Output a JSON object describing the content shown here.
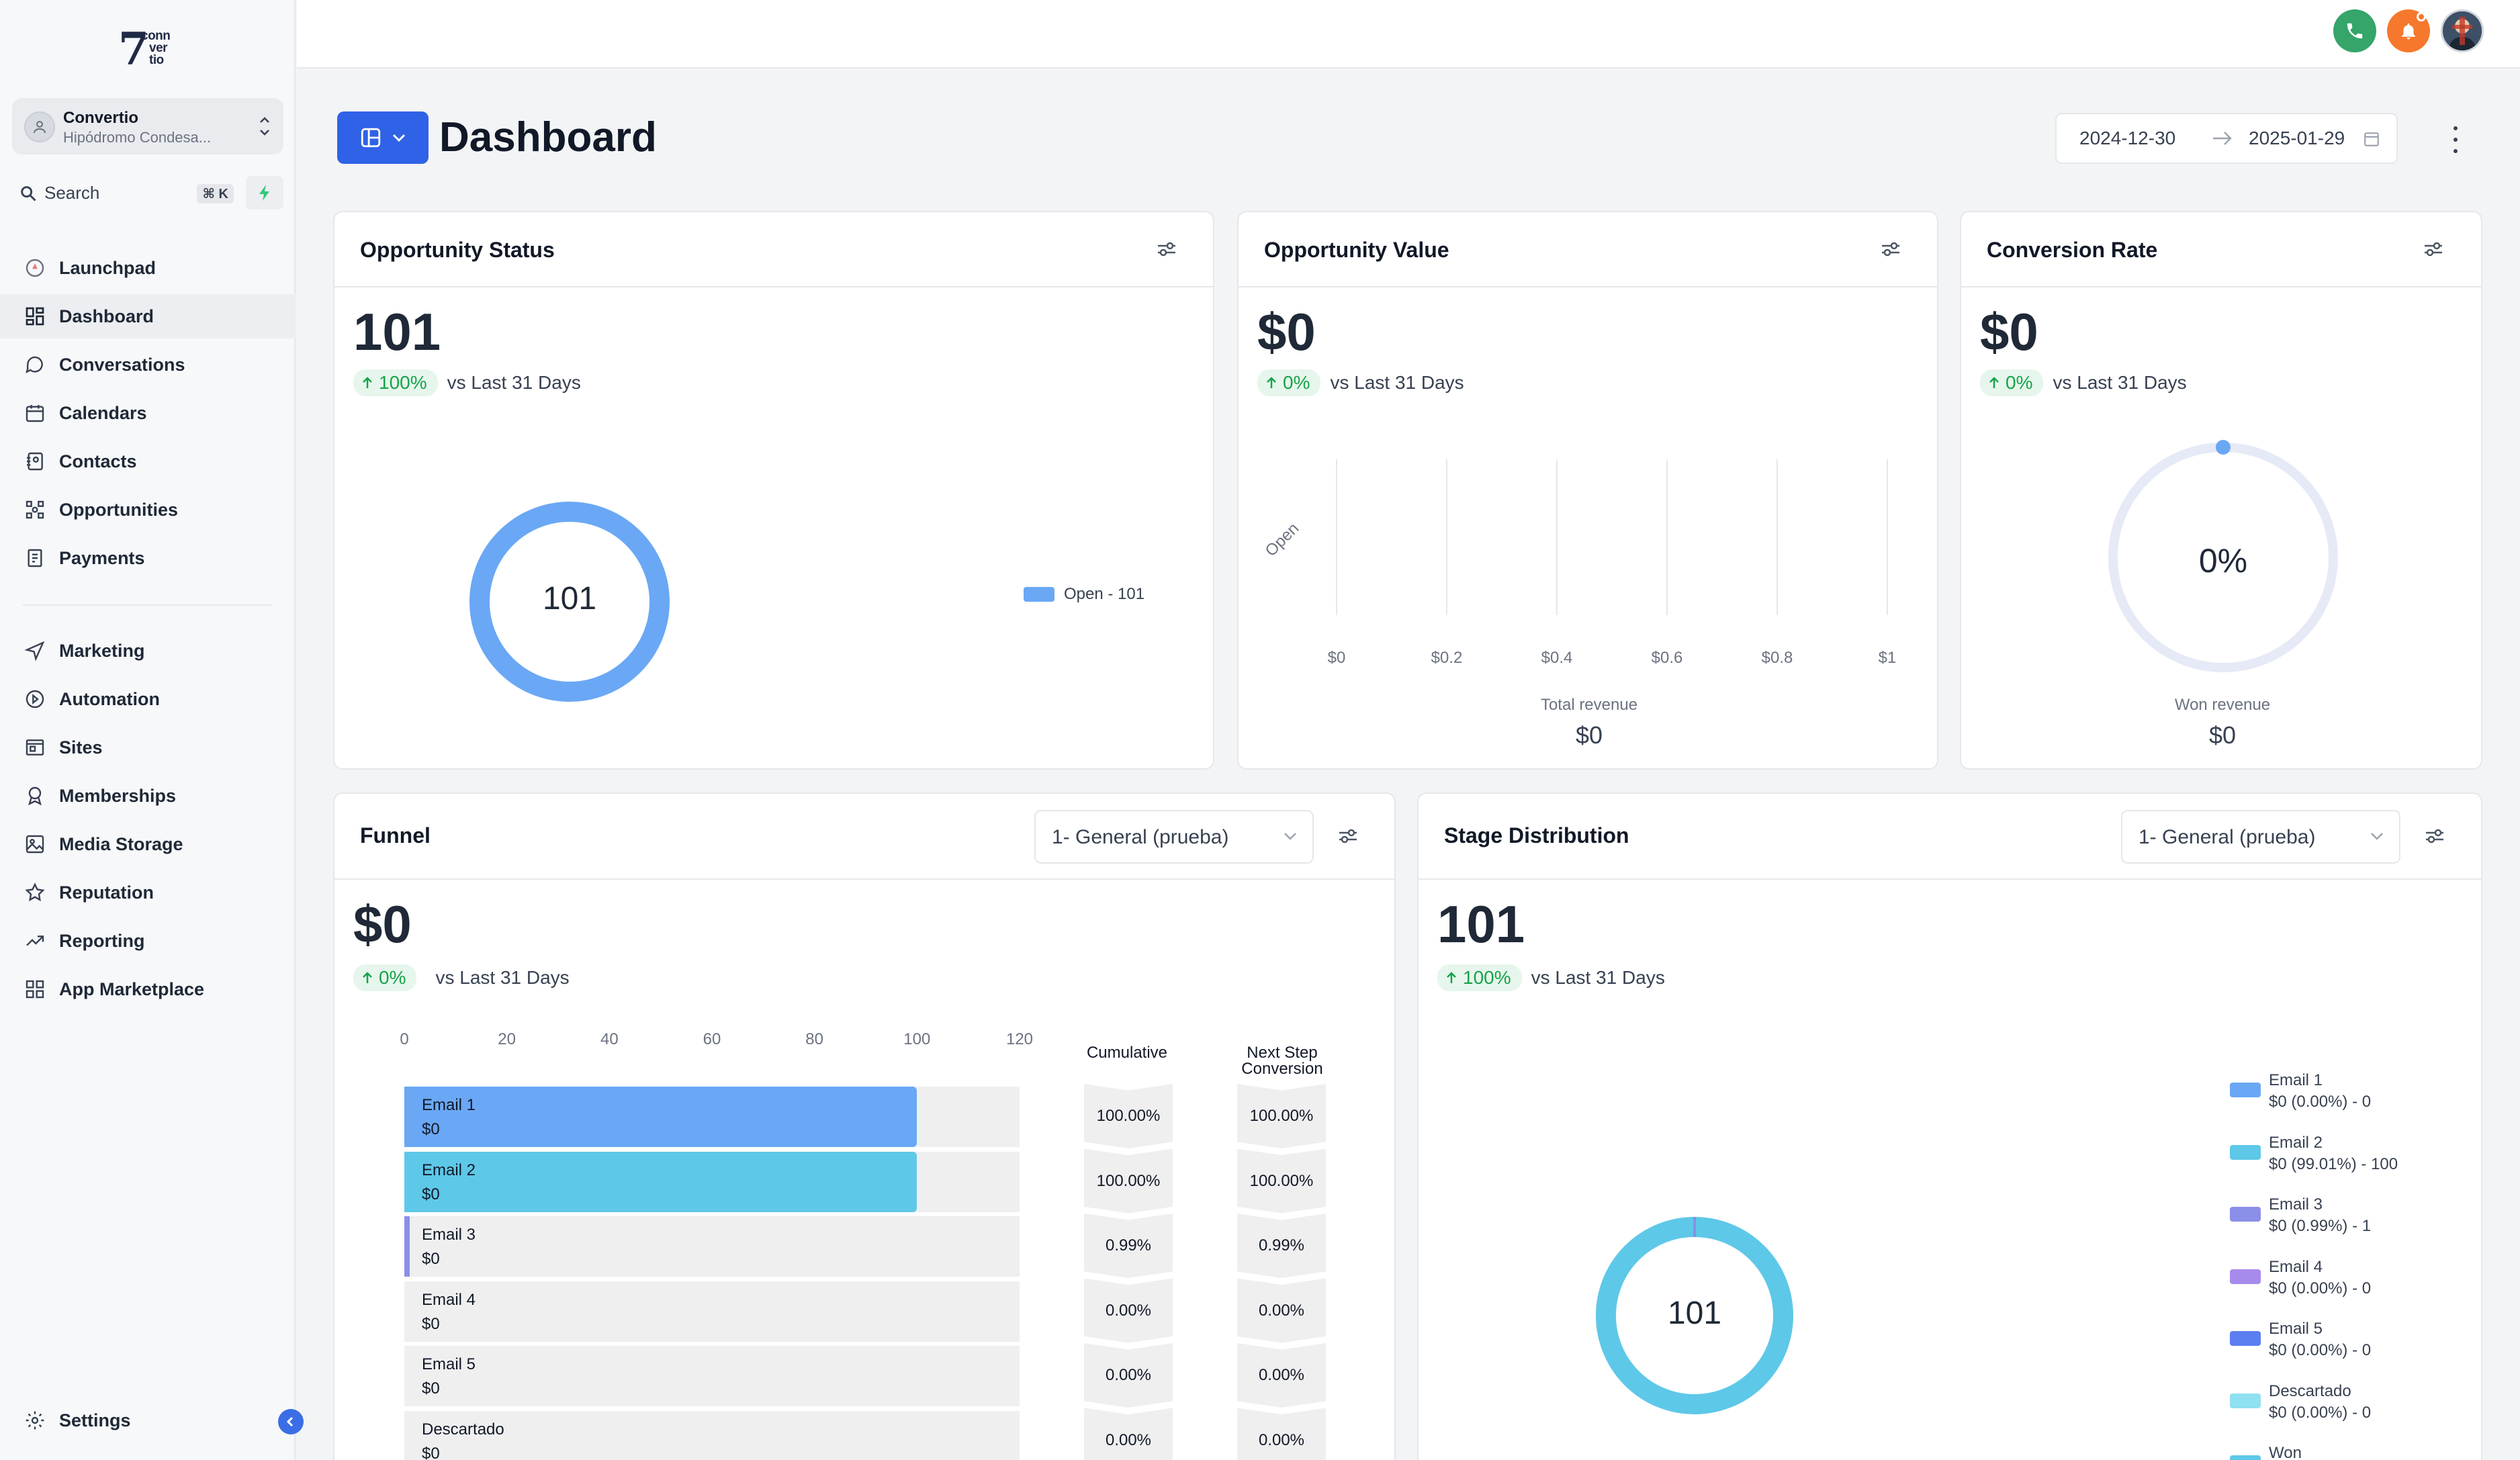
{
  "app": {
    "logo_lines": [
      "conn",
      "ver",
      "tio"
    ],
    "account_name": "Convertio",
    "account_location": "Hipódromo Condesa...",
    "search_label": "Search",
    "search_shortcut": "⌘ K"
  },
  "sidebar": {
    "items": [
      {
        "label": "Launchpad",
        "icon": "rocket-icon"
      },
      {
        "label": "Dashboard",
        "icon": "dashboard-grid-icon",
        "active": true
      },
      {
        "label": "Conversations",
        "icon": "chat-bubble-icon"
      },
      {
        "label": "Calendars",
        "icon": "calendar-icon"
      },
      {
        "label": "Contacts",
        "icon": "contact-book-icon"
      },
      {
        "label": "Opportunities",
        "icon": "opportunities-icon"
      },
      {
        "label": "Payments",
        "icon": "invoice-icon"
      },
      {
        "label": "Marketing",
        "icon": "send-icon"
      },
      {
        "label": "Automation",
        "icon": "automation-icon"
      },
      {
        "label": "Sites",
        "icon": "sites-icon"
      },
      {
        "label": "Memberships",
        "icon": "badge-icon"
      },
      {
        "label": "Media Storage",
        "icon": "image-icon"
      },
      {
        "label": "Reputation",
        "icon": "star-icon"
      },
      {
        "label": "Reporting",
        "icon": "trend-icon"
      },
      {
        "label": "App Marketplace",
        "icon": "apps-icon"
      }
    ],
    "settings_label": "Settings"
  },
  "header": {
    "title": "Dashboard",
    "date_start": "2024-12-30",
    "date_end": "2025-01-29"
  },
  "colors": {
    "primary": "#2f62e6",
    "open": "#6aa8f5",
    "won": "#5ec8e8",
    "trend_green": "#16a34a"
  },
  "opportunity_status": {
    "title": "Opportunity Status",
    "value": "101",
    "trend": "100%",
    "vs": "vs Last 31 Days",
    "donut_center": "101",
    "legend": "Open - 101"
  },
  "opportunity_value": {
    "title": "Opportunity Value",
    "value": "$0",
    "trend": "0%",
    "vs": "vs Last 31 Days",
    "category": "Open",
    "ticks": [
      "$0",
      "$0.2",
      "$0.4",
      "$0.6",
      "$0.8",
      "$1"
    ],
    "total_label": "Total revenue",
    "total_value": "$0"
  },
  "conversion_rate": {
    "title": "Conversion Rate",
    "value": "$0",
    "trend": "0%",
    "vs": "vs Last 31 Days",
    "gauge_center": "0%",
    "won_label": "Won revenue",
    "won_value": "$0"
  },
  "funnel": {
    "title": "Funnel",
    "pipeline": "1- General (prueba)",
    "value": "$0",
    "trend": "0%",
    "vs": "vs Last 31 Days",
    "axis_ticks": [
      "0",
      "20",
      "40",
      "60",
      "80",
      "100",
      "120"
    ],
    "col_cumulative": "Cumulative",
    "col_next_line1": "Next Step",
    "col_next_line2": "Conversion",
    "stages": [
      {
        "name": "Email 1",
        "value": "$0",
        "count": 100,
        "color": "#6aa8f5",
        "cumulative": "100.00%",
        "next": "100.00%"
      },
      {
        "name": "Email 2",
        "value": "$0",
        "count": 100,
        "color": "#5ec8e8",
        "cumulative": "100.00%",
        "next": "100.00%"
      },
      {
        "name": "Email 3",
        "value": "$0",
        "count": 1,
        "color": "#8b8fe8",
        "cumulative": "0.99%",
        "next": "0.99%"
      },
      {
        "name": "Email 4",
        "value": "$0",
        "count": 0,
        "color": "#a78bec",
        "cumulative": "0.00%",
        "next": "0.00%"
      },
      {
        "name": "Email 5",
        "value": "$0",
        "count": 0,
        "color": "#5b7ff0",
        "cumulative": "0.00%",
        "next": "0.00%"
      },
      {
        "name": "Descartado",
        "value": "$0",
        "count": 0,
        "color": "#8fe0f0",
        "cumulative": "0.00%",
        "next": "0.00%"
      }
    ]
  },
  "stage_distribution": {
    "title": "Stage Distribution",
    "pipeline": "1- General (prueba)",
    "value": "101",
    "trend": "100%",
    "vs": "vs Last 31 Days",
    "donut_center": "101",
    "legend": [
      {
        "name": "Email 1",
        "detail": "$0 (0.00%) - 0",
        "color": "#6aa8f5"
      },
      {
        "name": "Email 2",
        "detail": "$0 (99.01%) - 100",
        "color": "#5ec8e8"
      },
      {
        "name": "Email 3",
        "detail": "$0 (0.99%) - 1",
        "color": "#8b8fe8"
      },
      {
        "name": "Email 4",
        "detail": "$0 (0.00%) - 0",
        "color": "#a78bec"
      },
      {
        "name": "Email 5",
        "detail": "$0 (0.00%) - 0",
        "color": "#5b7ff0"
      },
      {
        "name": "Descartado",
        "detail": "$0 (0.00%) - 0",
        "color": "#8fe0f0"
      },
      {
        "name": "Won",
        "detail": "",
        "color": "#5ec8e8"
      }
    ]
  }
}
